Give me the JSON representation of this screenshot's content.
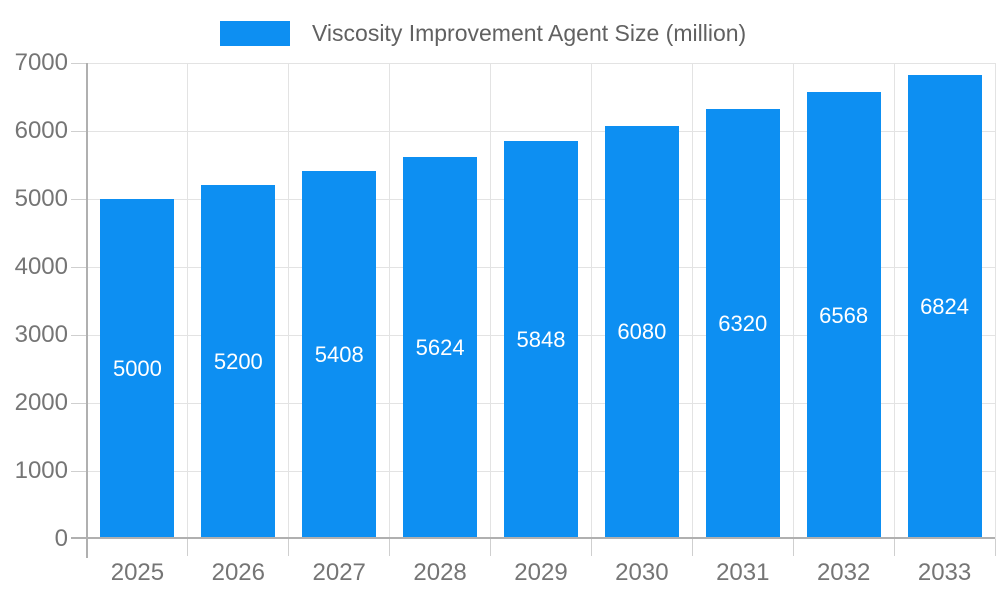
{
  "chart_data": {
    "type": "bar",
    "legend_label": "Viscosity Improvement Agent Size (million)",
    "categories": [
      "2025",
      "2026",
      "2027",
      "2028",
      "2029",
      "2030",
      "2031",
      "2032",
      "2033"
    ],
    "values": [
      5000,
      5200,
      5408,
      5624,
      5848,
      6080,
      6320,
      6568,
      6824
    ],
    "value_labels": [
      "5000",
      "5200",
      "5408",
      "5624",
      "5848",
      "6080",
      "6320",
      "6568",
      "6824"
    ],
    "yticks": [
      0,
      1000,
      2000,
      3000,
      4000,
      5000,
      6000,
      7000
    ],
    "ytick_labels": [
      "0",
      "1000",
      "2000",
      "3000",
      "4000",
      "5000",
      "6000",
      "7000"
    ],
    "ylim": [
      0,
      7000
    ],
    "xlabel": "",
    "ylabel": "",
    "grid": true,
    "legend_position": "top",
    "colors": {
      "bar": "#0d8ff2",
      "value_label_text": "#ffffff",
      "gridline": "#e3e3e3",
      "baseline": "#b0b0b0",
      "axis_line": "#b0b0b0",
      "tick": "#cfcfcf",
      "axis_text": "#757575",
      "legend_text": "#616161",
      "background": "#ffffff"
    }
  }
}
